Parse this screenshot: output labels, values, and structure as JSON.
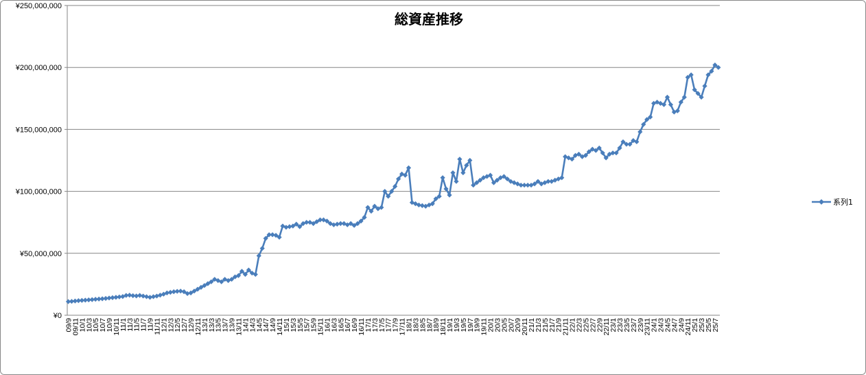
{
  "chart_data": {
    "type": "line",
    "title": "総資産推移",
    "xlabel": "",
    "ylabel": "",
    "ylim": [
      0,
      250000000
    ],
    "y_tick_labels": [
      "¥0",
      "¥50,000,000",
      "¥100,000,000",
      "¥150,000,000",
      "¥200,000,000",
      "¥250,000,000"
    ],
    "y_tick_values": [
      0,
      50000000,
      100000000,
      150000000,
      200000000,
      250000000
    ],
    "grid": "horizontal",
    "legend_position": "right",
    "marker": "diamond",
    "color": "#4a7ebb",
    "x_tick_labels": [
      "09/9",
      "09/11",
      "10/1",
      "10/3",
      "10/5",
      "10/7",
      "10/9",
      "10/11",
      "11/1",
      "11/3",
      "11/5",
      "11/7",
      "11/9",
      "11/11",
      "12/1",
      "12/3",
      "12/5",
      "12/7",
      "12/9",
      "12/11",
      "13/1",
      "13/3",
      "13/5",
      "13/7",
      "13/9",
      "13/11",
      "14/1",
      "14/3",
      "14/5",
      "14/7",
      "14/9",
      "14/11",
      "15/1",
      "15/3",
      "15/5",
      "15/7",
      "15/9",
      "15/11",
      "16/1",
      "16/3",
      "16/5",
      "16/7",
      "16/9",
      "16/11",
      "17/1",
      "17/3",
      "17/5",
      "17/7",
      "17/9",
      "17/11",
      "18/1",
      "18/3",
      "18/5",
      "18/7",
      "18/9",
      "18/11",
      "19/1",
      "19/3",
      "19/5",
      "19/7",
      "19/9",
      "19/11",
      "20/1",
      "20/3",
      "20/5",
      "20/7",
      "20/9",
      "20/11",
      "21/1",
      "21/3",
      "21/5",
      "21/7",
      "21/9",
      "21/11",
      "22/1",
      "22/3",
      "22/5",
      "22/7",
      "22/9",
      "22/11",
      "23/1",
      "23/3",
      "23/5",
      "23/7",
      "23/9",
      "23/11",
      "24/1",
      "24/3",
      "24/5",
      "24/7",
      "24/9",
      "24/11",
      "25/1",
      "25/3",
      "25/5",
      "25/7"
    ],
    "series": [
      {
        "name": "系列1",
        "values": [
          11000000,
          11200000,
          11500000,
          11800000,
          12000000,
          12200000,
          12400000,
          12600000,
          12900000,
          13100000,
          13300000,
          13600000,
          13900000,
          14200000,
          14500000,
          14800000,
          15100000,
          16000000,
          16200000,
          15800000,
          15600000,
          16000000,
          15500000,
          15000000,
          14500000,
          15000000,
          15500000,
          16200000,
          17000000,
          18000000,
          18500000,
          19000000,
          19300000,
          19500000,
          19000000,
          17500000,
          18000000,
          19500000,
          21000000,
          22500000,
          24000000,
          25500000,
          27000000,
          29000000,
          28000000,
          27000000,
          29000000,
          28000000,
          29000000,
          31000000,
          32000000,
          35500000,
          33000000,
          36500000,
          34000000,
          33000000,
          48000000,
          54000000,
          62000000,
          65000000,
          65000000,
          64500000,
          63000000,
          72000000,
          71000000,
          71500000,
          72000000,
          73500000,
          71500000,
          74000000,
          75000000,
          75000000,
          74000000,
          75500000,
          77000000,
          77000000,
          76000000,
          74000000,
          73000000,
          73500000,
          74000000,
          74000000,
          73000000,
          74000000,
          72500000,
          74000000,
          76000000,
          79000000,
          87000000,
          84000000,
          88000000,
          86000000,
          87000000,
          100000000,
          96000000,
          100000000,
          104000000,
          110000000,
          114000000,
          113000000,
          119000000,
          91000000,
          90000000,
          89000000,
          88500000,
          88000000,
          89000000,
          90000000,
          94000000,
          96000000,
          111000000,
          102000000,
          97000000,
          115000000,
          108000000,
          126000000,
          115000000,
          121000000,
          125000000,
          105000000,
          107000000,
          109000000,
          111000000,
          112000000,
          113000000,
          107000000,
          109000000,
          111000000,
          112000000,
          110000000,
          108000000,
          107000000,
          106000000,
          105000000,
          105000000,
          105000000,
          105000000,
          106000000,
          108000000,
          106000000,
          107000000,
          108000000,
          108000000,
          109000000,
          110000000,
          111000000,
          128000000,
          127000000,
          126000000,
          129000000,
          130000000,
          128000000,
          129000000,
          132000000,
          134000000,
          133000000,
          135000000,
          131000000,
          127000000,
          130000000,
          131000000,
          131000000,
          135000000,
          140000000,
          138000000,
          138000000,
          141000000,
          140000000,
          148000000,
          154000000,
          158000000,
          160000000,
          171000000,
          172000000,
          171000000,
          170000000,
          176000000,
          170000000,
          164000000,
          165000000,
          172000000,
          176000000,
          192000000,
          194000000,
          182000000,
          179000000,
          176000000,
          185000000,
          194000000,
          197000000,
          202000000,
          200000000
        ]
      }
    ]
  }
}
